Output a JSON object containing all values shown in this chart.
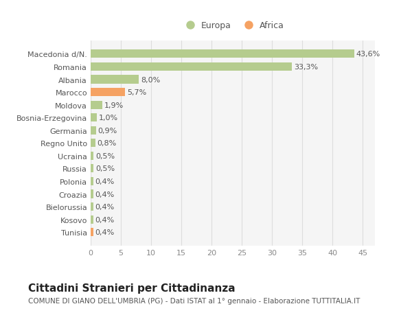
{
  "categories": [
    "Tunisia",
    "Kosovo",
    "Bielorussia",
    "Croazia",
    "Polonia",
    "Russia",
    "Ucraina",
    "Regno Unito",
    "Germania",
    "Bosnia-Erzegovina",
    "Moldova",
    "Marocco",
    "Albania",
    "Romania",
    "Macedonia d/N."
  ],
  "values": [
    0.4,
    0.4,
    0.4,
    0.4,
    0.4,
    0.5,
    0.5,
    0.8,
    0.9,
    1.0,
    1.9,
    5.7,
    8.0,
    33.3,
    43.6
  ],
  "labels": [
    "0,4%",
    "0,4%",
    "0,4%",
    "0,4%",
    "0,4%",
    "0,5%",
    "0,5%",
    "0,8%",
    "0,9%",
    "1,0%",
    "1,9%",
    "5,7%",
    "8,0%",
    "33,3%",
    "43,6%"
  ],
  "colors": [
    "#f5a263",
    "#b5cc8e",
    "#b5cc8e",
    "#b5cc8e",
    "#b5cc8e",
    "#b5cc8e",
    "#b5cc8e",
    "#b5cc8e",
    "#b5cc8e",
    "#b5cc8e",
    "#b5cc8e",
    "#f5a263",
    "#b5cc8e",
    "#b5cc8e",
    "#b5cc8e"
  ],
  "europa_color": "#b5cc8e",
  "africa_color": "#f5a263",
  "xlim": [
    0,
    47
  ],
  "xticks": [
    0,
    5,
    10,
    15,
    20,
    25,
    30,
    35,
    40,
    45
  ],
  "title": "Cittadini Stranieri per Cittadinanza",
  "subtitle": "COMUNE DI GIANO DELL'UMBRIA (PG) - Dati ISTAT al 1° gennaio - Elaborazione TUTTITALIA.IT",
  "background_color": "#ffffff",
  "plot_background": "#f5f5f5",
  "grid_color": "#dddddd",
  "bar_height": 0.65,
  "label_fontsize": 8,
  "tick_label_fontsize": 8,
  "title_fontsize": 11,
  "subtitle_fontsize": 7.5
}
